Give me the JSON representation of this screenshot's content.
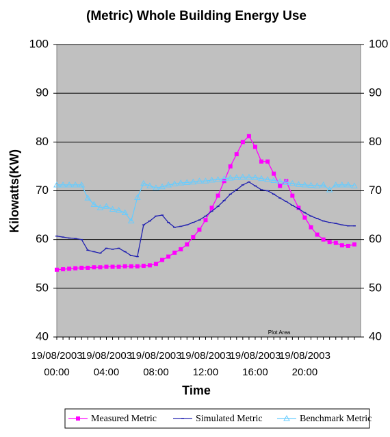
{
  "chart_data": {
    "type": "line",
    "title": "(Metric) Whole Building Energy Use",
    "x_label": "Time",
    "y_label": "Kilowatts(KW)",
    "tooltip": "Plot Area",
    "categories": [
      "19/08/2003 00:00",
      null,
      null,
      null,
      null,
      null,
      null,
      null,
      "19/08/2003 04:00",
      null,
      null,
      null,
      null,
      null,
      null,
      null,
      "19/08/2003 08:00",
      null,
      null,
      null,
      null,
      null,
      null,
      null,
      "19/08/2003 12:00",
      null,
      null,
      null,
      null,
      null,
      null,
      null,
      "19/08/2003 16:00",
      null,
      null,
      null,
      null,
      null,
      null,
      null,
      "19/08/2003 20:00",
      null,
      null,
      null,
      null,
      null,
      null,
      null,
      null
    ],
    "series": [
      {
        "name": "Measured Metric",
        "color": "#ff00ff",
        "marker": "square",
        "values": [
          53.8,
          53.9,
          54,
          54.1,
          54.2,
          54.2,
          54.3,
          54.3,
          54.4,
          54.4,
          54.4,
          54.5,
          54.5,
          54.5,
          54.6,
          54.7,
          55,
          55.8,
          56.5,
          57.3,
          58,
          59,
          60.5,
          62,
          64,
          66.5,
          69,
          72,
          75,
          77.5,
          80,
          81.2,
          79,
          76,
          76,
          73.5,
          71,
          72,
          69,
          66.5,
          64.5,
          62.5,
          61,
          60,
          59.5,
          59.3,
          58.8,
          58.7,
          59
        ]
      },
      {
        "name": "Simulated Metric",
        "color": "#2020b0",
        "marker": "dash",
        "values": [
          60.7,
          60.5,
          60.3,
          60.2,
          60,
          57.8,
          57.5,
          57.2,
          58.2,
          58,
          58.2,
          57.5,
          56.7,
          56.5,
          63,
          63.8,
          64.8,
          65,
          63.5,
          62.5,
          62.7,
          63,
          63.5,
          64,
          64.8,
          65.8,
          66.8,
          68,
          69.3,
          70.2,
          71.2,
          71.8,
          71,
          70.2,
          70,
          69.3,
          68.5,
          67.8,
          67,
          66.3,
          65.5,
          64.8,
          64.3,
          63.8,
          63.5,
          63.3,
          63,
          62.8,
          62.8
        ]
      },
      {
        "name": "Benchmark Metric",
        "color": "#66ccff",
        "marker": "triangle",
        "values": [
          71.2,
          71.2,
          71.2,
          71.2,
          71.2,
          68.5,
          67.2,
          66.5,
          66.8,
          66.2,
          66,
          65.5,
          63.8,
          68.6,
          71.5,
          71,
          70.6,
          70.8,
          71.2,
          71.4,
          71.6,
          71.7,
          71.8,
          72,
          72,
          72.2,
          72.3,
          72.5,
          72.6,
          72.7,
          72.8,
          72.8,
          72.7,
          72.5,
          72.3,
          72.1,
          71.9,
          71.7,
          71.5,
          71.3,
          71.2,
          71.1,
          71,
          71.2,
          70.2,
          71.2,
          71.2,
          71.2,
          71
        ]
      }
    ],
    "ylim": [
      40,
      100
    ],
    "yticks": [
      40,
      50,
      60,
      70,
      80,
      90,
      100
    ],
    "y2lim": [
      40,
      100
    ],
    "y2ticks": [
      40,
      50,
      60,
      70,
      80,
      90,
      100
    ],
    "grid": true,
    "legend": "bottom",
    "plot_color": "#c0c0c0"
  }
}
